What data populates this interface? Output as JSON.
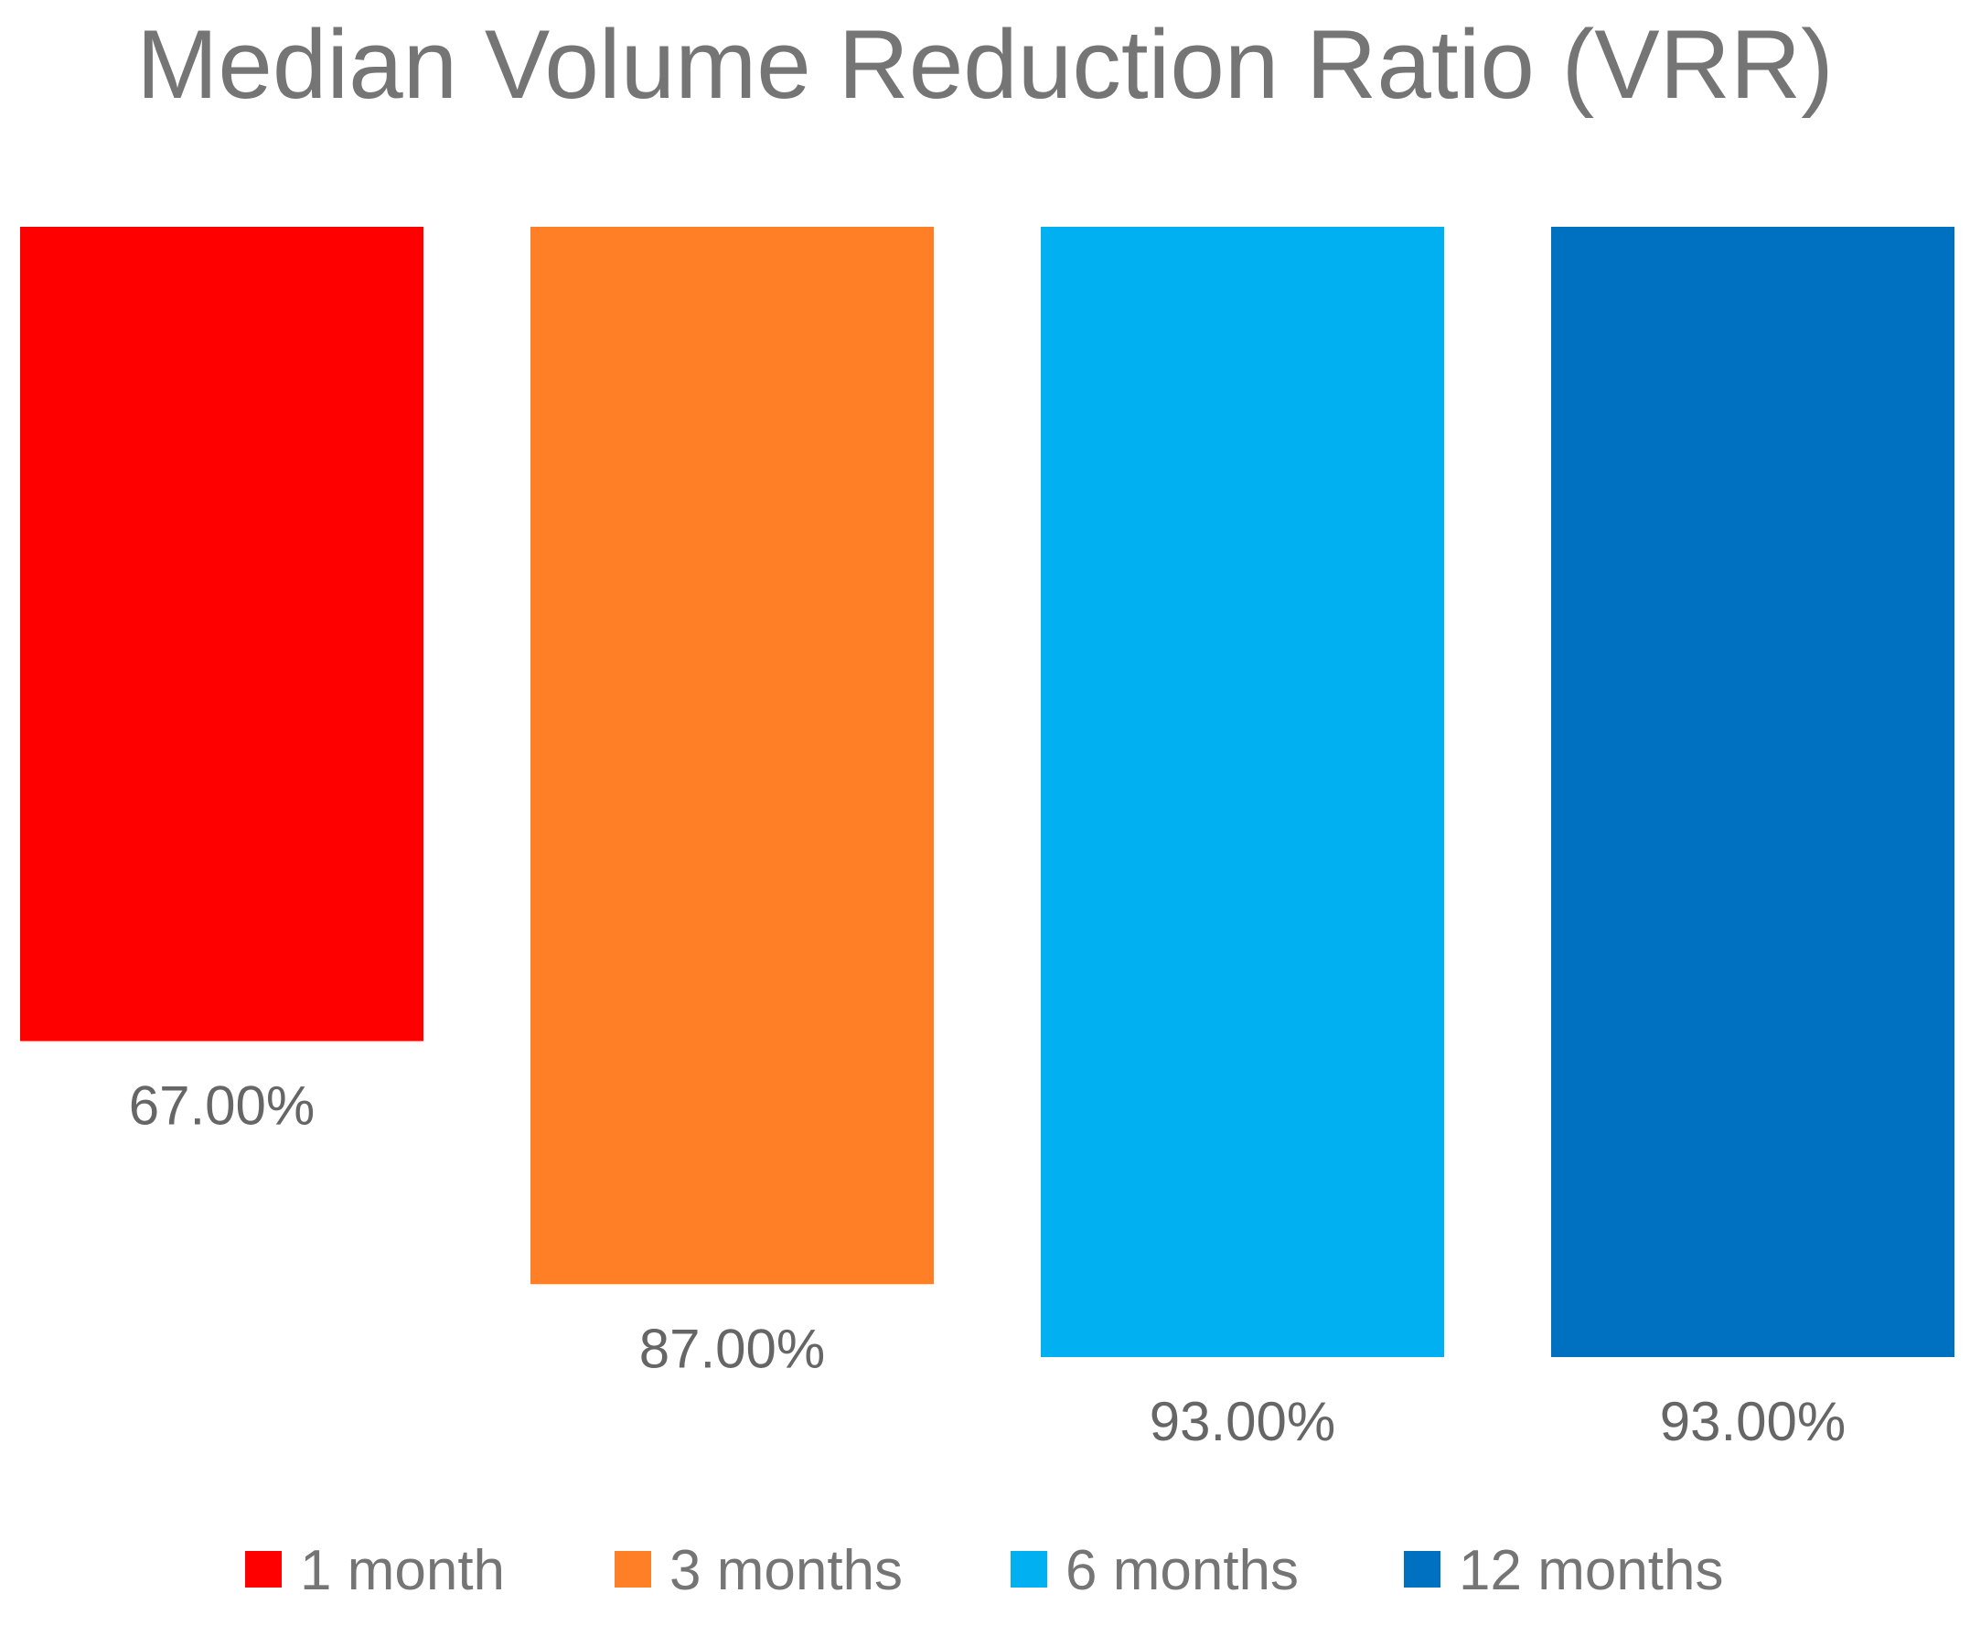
{
  "chart_data": {
    "type": "bar",
    "title": "Median Volume Reduction Ratio (VRR)",
    "xlabel": "",
    "ylabel": "",
    "orientation": "vertical-hanging",
    "grid": false,
    "legend_position": "bottom",
    "ylim": [
      0,
      100
    ],
    "series": [
      {
        "name": "1 month",
        "value": 67.0,
        "label": "67.00%",
        "color": "#ff0000"
      },
      {
        "name": "3 months",
        "value": 87.0,
        "label": "87.00%",
        "color": "#ff7f27"
      },
      {
        "name": "6 months",
        "value": 93.0,
        "label": "93.00%",
        "color": "#00b0f0"
      },
      {
        "name": "12 months",
        "value": 93.0,
        "label": "93.00%",
        "color": "#0070c0"
      }
    ],
    "text_color": "#757575",
    "label_color": "#666666"
  }
}
